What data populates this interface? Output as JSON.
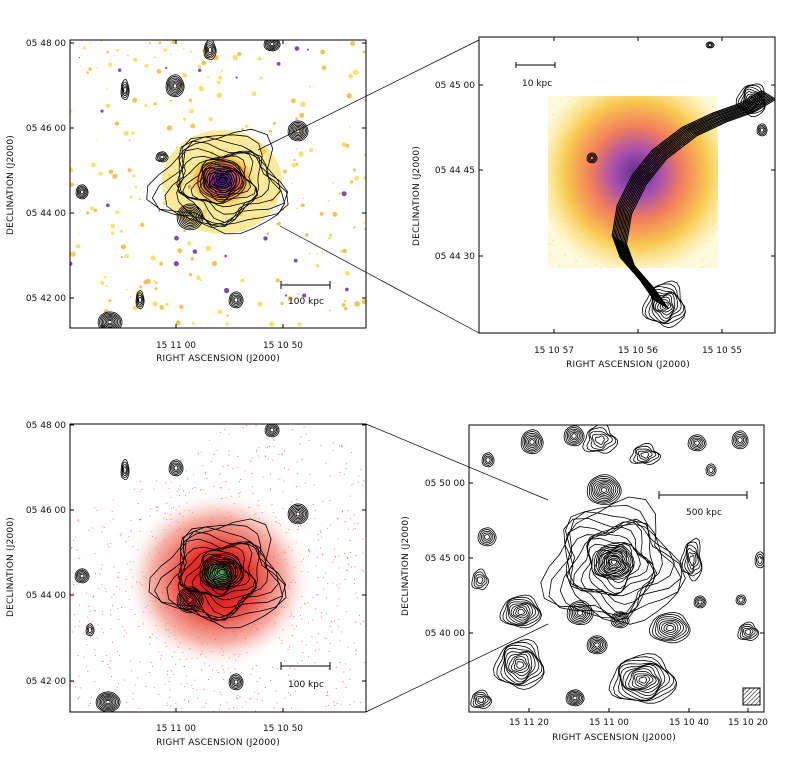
{
  "panels": {
    "top_left": {
      "xlabel": "RIGHT ASCENSION  (J2000)",
      "ylabel": "DECLINATION  (J2000)",
      "xticks": [
        "15 11 00",
        "15 10 50"
      ],
      "yticks": [
        "05 48 00",
        "05 46 00",
        "05 44 00",
        "05 42 00"
      ],
      "scale_label": "100 kpc",
      "colormap": "inferno (yellow-purple)"
    },
    "top_right": {
      "xlabel": "RIGHT ASCENSION  (J2000)",
      "ylabel": "DECLINATION  (J2000)",
      "xticks": [
        "15 10 57",
        "15 10 56",
        "15 10 55"
      ],
      "yticks": [
        "05 45 00",
        "05 44 45",
        "05 44 30"
      ],
      "scale_label": "10 kpc",
      "colormap": "inferno (yellow-purple)"
    },
    "bottom_left": {
      "xlabel": "RIGHT ASCENSION  (J2000)",
      "ylabel": "DECLINATION  (J2000)",
      "xticks": [
        "15 11 00",
        "15 10 50"
      ],
      "yticks": [
        "05 48 00",
        "05 46 00",
        "05 44 00",
        "05 42 00"
      ],
      "scale_label": "100 kpc",
      "colormap": "red (X-ray)"
    },
    "bottom_right": {
      "xlabel": "RIGHT ASCENSION  (J2000)",
      "ylabel": "DECLINATION  (J2000)",
      "xticks": [
        "15 11 20",
        "15 11 00",
        "15 10 40",
        "15 10 20"
      ],
      "yticks": [
        "05 50 00",
        "05 45 00",
        "05 40 00"
      ],
      "scale_label": "500 kpc",
      "colormap": "none (contours only)"
    }
  },
  "colors": {
    "contour": "#000000",
    "optical_yellow": "#f5d63a",
    "optical_orange": "#e98a2a",
    "optical_purple": "#5b2a9a",
    "xray_red": "#e02a22",
    "frame": "#000000"
  }
}
